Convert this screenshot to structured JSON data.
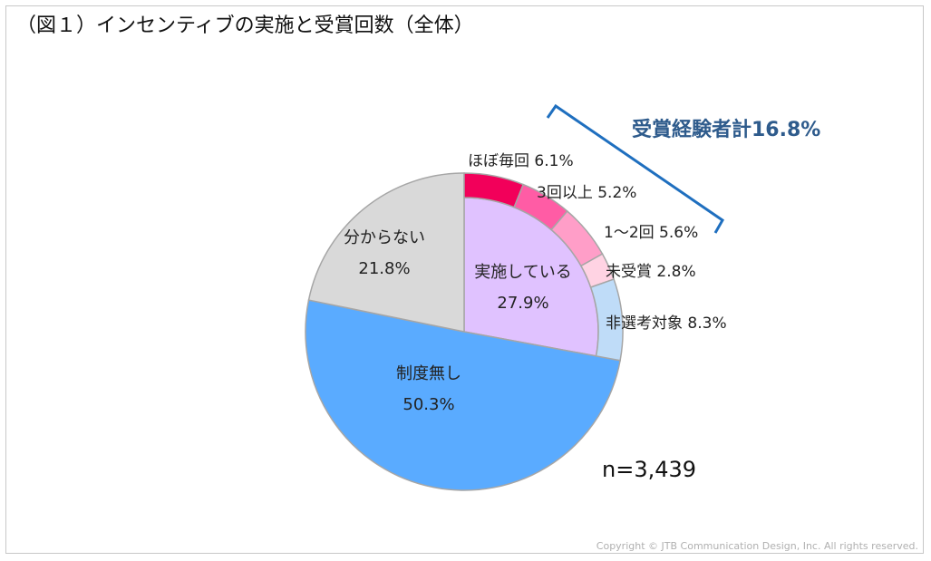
{
  "title": "（図１）インセンティブの実施と受賞回数（全体）",
  "bracket_label": "受賞経験者計16.8%",
  "sample_size": "n=3,439",
  "copyright": "Copyright © JTB Communication  Design, Inc. All rights reserved.",
  "chart_data": {
    "type": "pie",
    "title": "（図１）インセンティブの実施と受賞回数（全体）",
    "outer_slices": [
      {
        "label": "実施している",
        "value": 27.9,
        "display": "27.9%",
        "color": "#e0c2ff"
      },
      {
        "label": "制度無し",
        "value": 50.3,
        "display": "50.3%",
        "color": "#5aabff"
      },
      {
        "label": "分からない",
        "value": 21.8,
        "display": "21.8%",
        "color": "#d9d9d9"
      }
    ],
    "breakdown_slices": [
      {
        "label": "ほぼ毎回",
        "value": 6.1,
        "display": "6.1%",
        "color": "#f2005a"
      },
      {
        "label": "3回以上",
        "value": 5.2,
        "display": "5.2%",
        "color": "#ff5ca5"
      },
      {
        "label": "1～2回",
        "value": 5.6,
        "display": "5.6%",
        "color": "#ff9ec8"
      },
      {
        "label": "未受賞",
        "value": 2.8,
        "display": "2.8%",
        "color": "#ffd3e3"
      },
      {
        "label": "非選考対象",
        "value": 8.3,
        "display": "8.3%",
        "color": "#bfdcf8"
      }
    ],
    "annotation": "受賞経験者計16.8%",
    "sample": "n=3,439"
  }
}
